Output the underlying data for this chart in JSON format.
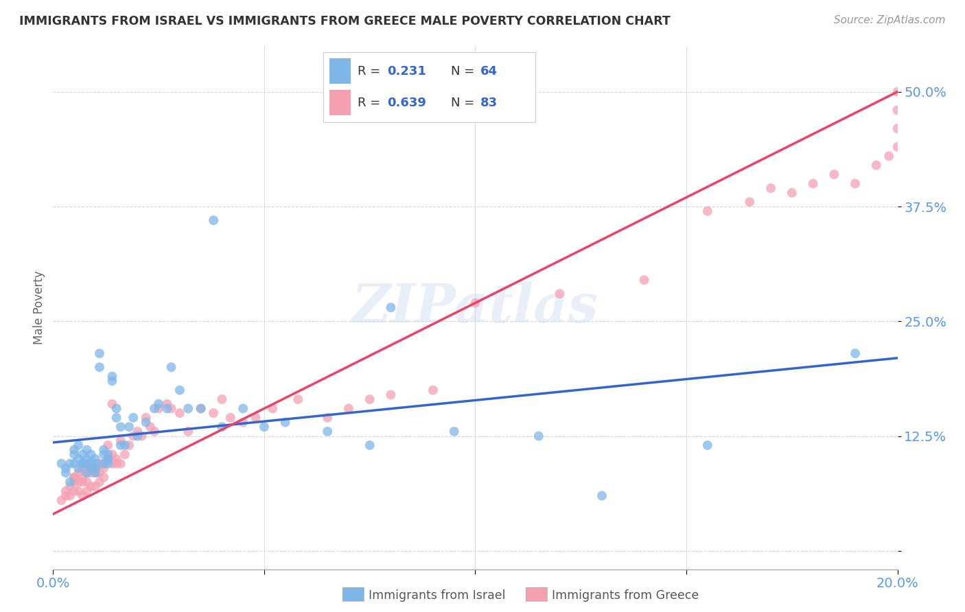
{
  "title": "IMMIGRANTS FROM ISRAEL VS IMMIGRANTS FROM GREECE MALE POVERTY CORRELATION CHART",
  "source": "Source: ZipAtlas.com",
  "ylabel": "Male Poverty",
  "xlim": [
    0.0,
    0.2
  ],
  "ylim": [
    -0.02,
    0.55
  ],
  "color_israel": "#7EB6E8",
  "color_greece": "#F4A0B0",
  "line_color_israel": "#3366CC",
  "line_color_greece": "#E8446A",
  "background_color": "#FFFFFF",
  "grid_color": "#CCCCCC",
  "title_color": "#333333",
  "tick_label_color": "#5599EE",
  "watermark": "ZIPatlas",
  "israel_intercept": 0.118,
  "israel_slope": 0.46,
  "greece_intercept": 0.04,
  "greece_slope": 2.3,
  "israel_x": [
    0.002,
    0.003,
    0.003,
    0.004,
    0.004,
    0.005,
    0.005,
    0.005,
    0.006,
    0.006,
    0.006,
    0.007,
    0.007,
    0.007,
    0.008,
    0.008,
    0.008,
    0.008,
    0.009,
    0.009,
    0.009,
    0.01,
    0.01,
    0.01,
    0.01,
    0.011,
    0.011,
    0.012,
    0.012,
    0.012,
    0.013,
    0.013,
    0.013,
    0.014,
    0.014,
    0.015,
    0.015,
    0.016,
    0.016,
    0.017,
    0.018,
    0.019,
    0.02,
    0.022,
    0.024,
    0.025,
    0.027,
    0.028,
    0.03,
    0.032,
    0.035,
    0.038,
    0.04,
    0.045,
    0.05,
    0.055,
    0.065,
    0.075,
    0.08,
    0.095,
    0.115,
    0.13,
    0.155,
    0.19
  ],
  "israel_y": [
    0.095,
    0.085,
    0.09,
    0.075,
    0.095,
    0.105,
    0.095,
    0.11,
    0.09,
    0.1,
    0.115,
    0.095,
    0.105,
    0.095,
    0.085,
    0.1,
    0.11,
    0.095,
    0.105,
    0.095,
    0.09,
    0.09,
    0.1,
    0.095,
    0.085,
    0.215,
    0.2,
    0.11,
    0.095,
    0.105,
    0.1,
    0.095,
    0.105,
    0.185,
    0.19,
    0.145,
    0.155,
    0.115,
    0.135,
    0.115,
    0.135,
    0.145,
    0.125,
    0.14,
    0.155,
    0.16,
    0.155,
    0.2,
    0.175,
    0.155,
    0.155,
    0.36,
    0.135,
    0.155,
    0.135,
    0.14,
    0.13,
    0.115,
    0.265,
    0.13,
    0.125,
    0.06,
    0.115,
    0.215
  ],
  "greece_x": [
    0.002,
    0.003,
    0.003,
    0.004,
    0.004,
    0.005,
    0.005,
    0.005,
    0.005,
    0.006,
    0.006,
    0.006,
    0.007,
    0.007,
    0.007,
    0.007,
    0.008,
    0.008,
    0.008,
    0.008,
    0.009,
    0.009,
    0.009,
    0.01,
    0.01,
    0.01,
    0.011,
    0.011,
    0.011,
    0.012,
    0.012,
    0.012,
    0.013,
    0.013,
    0.014,
    0.014,
    0.014,
    0.015,
    0.015,
    0.016,
    0.016,
    0.017,
    0.018,
    0.019,
    0.02,
    0.021,
    0.022,
    0.023,
    0.024,
    0.025,
    0.027,
    0.028,
    0.03,
    0.032,
    0.035,
    0.038,
    0.04,
    0.042,
    0.045,
    0.048,
    0.052,
    0.058,
    0.065,
    0.07,
    0.075,
    0.08,
    0.09,
    0.1,
    0.12,
    0.14,
    0.155,
    0.165,
    0.17,
    0.175,
    0.18,
    0.185,
    0.19,
    0.195,
    0.198,
    0.2,
    0.2,
    0.2,
    0.2
  ],
  "greece_y": [
    0.055,
    0.065,
    0.06,
    0.06,
    0.07,
    0.08,
    0.065,
    0.08,
    0.075,
    0.085,
    0.065,
    0.075,
    0.075,
    0.06,
    0.09,
    0.08,
    0.075,
    0.085,
    0.065,
    0.09,
    0.085,
    0.07,
    0.09,
    0.085,
    0.07,
    0.09,
    0.085,
    0.075,
    0.095,
    0.09,
    0.08,
    0.095,
    0.115,
    0.1,
    0.105,
    0.16,
    0.095,
    0.1,
    0.095,
    0.12,
    0.095,
    0.105,
    0.115,
    0.125,
    0.13,
    0.125,
    0.145,
    0.135,
    0.13,
    0.155,
    0.16,
    0.155,
    0.15,
    0.13,
    0.155,
    0.15,
    0.165,
    0.145,
    0.14,
    0.145,
    0.155,
    0.165,
    0.145,
    0.155,
    0.165,
    0.17,
    0.175,
    0.27,
    0.28,
    0.295,
    0.37,
    0.38,
    0.395,
    0.39,
    0.4,
    0.41,
    0.4,
    0.42,
    0.43,
    0.44,
    0.46,
    0.48,
    0.5
  ]
}
